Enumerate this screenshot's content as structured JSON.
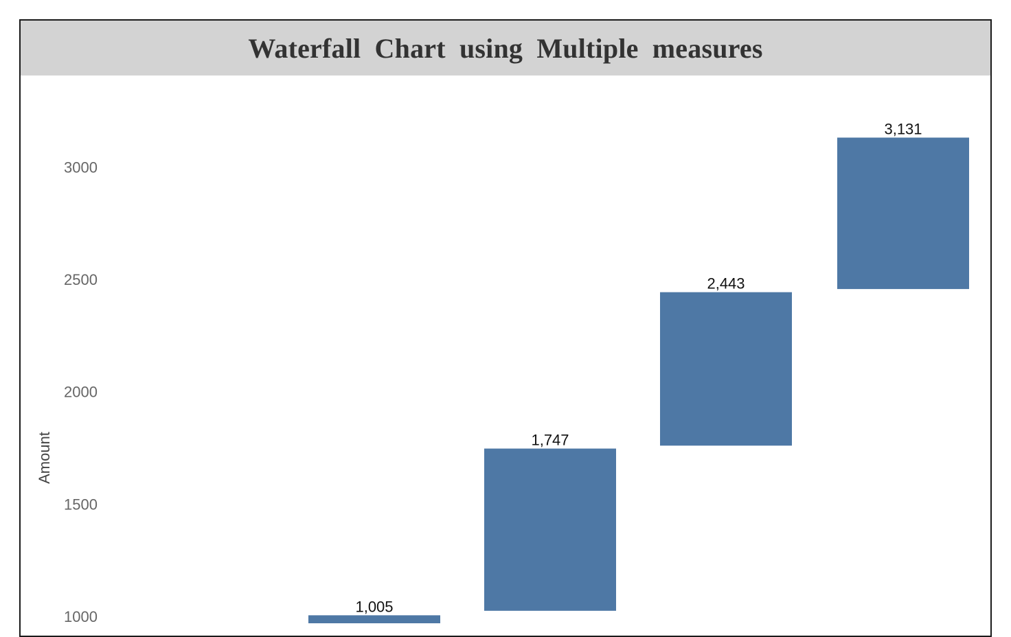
{
  "chart_data": {
    "type": "bar",
    "subtype": "waterfall",
    "title": "Waterfall Chart using Multiple measures",
    "xlabel": "",
    "ylabel": "Amount",
    "yticks": [
      1000,
      1500,
      2000,
      2500,
      3000
    ],
    "ylim": [
      950,
      3300
    ],
    "grid": false,
    "legend": "none",
    "bar_color": "#4e78a5",
    "title_background": "#d3d3d3",
    "bars": [
      {
        "start": 0,
        "end": 1005,
        "label": "1,005"
      },
      {
        "start": 1025,
        "end": 1747,
        "label": "1,747"
      },
      {
        "start": 1760,
        "end": 2443,
        "label": "2,443"
      },
      {
        "start": 2457,
        "end": 3131,
        "label": "3,131"
      }
    ]
  }
}
